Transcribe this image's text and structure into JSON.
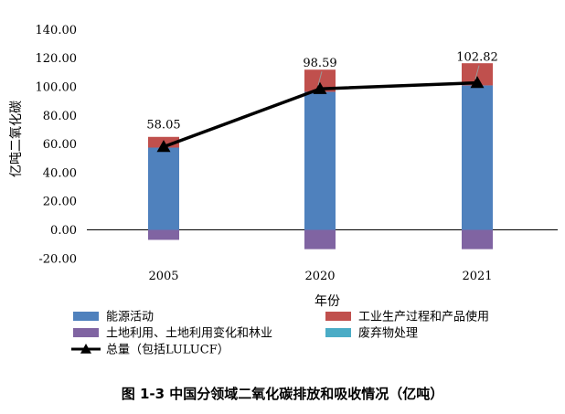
{
  "chart_data": {
    "type": "bar",
    "stacked": true,
    "categories": [
      "2005",
      "2020",
      "2021"
    ],
    "series": [
      {
        "name": "能源活动",
        "color": "#4f81bd",
        "values": [
          57.5,
          96.5,
          101.0
        ]
      },
      {
        "name": "工业生产过程和产品使用",
        "color": "#c0504d",
        "values": [
          7.5,
          15.5,
          15.5
        ]
      },
      {
        "name": "土地利用、土地利用变化和林业",
        "color": "#8064a2",
        "values": [
          -7.0,
          -13.5,
          -13.5
        ]
      },
      {
        "name": "废弃物处理",
        "color": "#4bacc6",
        "values": [
          0.0,
          0.0,
          0.0
        ]
      }
    ],
    "total": {
      "name": "总量（包括LULUCF）",
      "color": "#000000",
      "values": [
        58.05,
        98.59,
        102.82
      ],
      "labels": [
        "58.05",
        "98.59",
        "102.82"
      ]
    },
    "yticks": [
      "-20.00",
      "0.00",
      "20.00",
      "40.00",
      "60.00",
      "80.00",
      "100.00",
      "120.00",
      "140.00"
    ],
    "ylim": [
      -20,
      140
    ],
    "xlabel": "年份",
    "ylabel": "亿吨二氧化碳",
    "legend_position": "bottom",
    "title": "图 1-3 中国分领域二氧化碳排放和吸收情况（亿吨）"
  }
}
